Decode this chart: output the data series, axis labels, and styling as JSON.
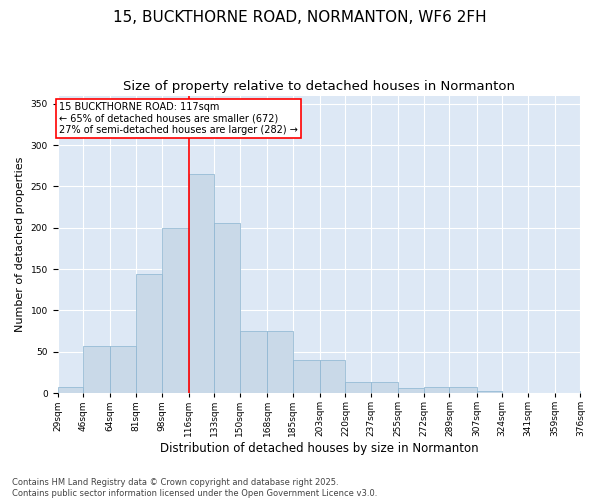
{
  "title_line1": "15, BUCKTHORNE ROAD, NORMANTON, WF6 2FH",
  "title_line2": "Size of property relative to detached houses in Normanton",
  "xlabel": "Distribution of detached houses by size in Normanton",
  "ylabel": "Number of detached properties",
  "annotation_title": "15 BUCKTHORNE ROAD: 117sqm",
  "annotation_line2": "← 65% of detached houses are smaller (672)",
  "annotation_line3": "27% of semi-detached houses are larger (282) →",
  "vline_x": 116,
  "bar_color": "#c9d9e8",
  "bar_edge_color": "#8ab4d0",
  "vline_color": "red",
  "annotation_box_color": "red",
  "background_color": "#dde8f5",
  "plot_bg_color": "#dde8f5",
  "bins": [
    29,
    46,
    64,
    81,
    98,
    116,
    133,
    150,
    168,
    185,
    203,
    220,
    237,
    255,
    272,
    289,
    307,
    324,
    341,
    359,
    376
  ],
  "counts": [
    8,
    57,
    57,
    144,
    200,
    265,
    206,
    75,
    75,
    40,
    40,
    13,
    13,
    6,
    7,
    7,
    3,
    0,
    0,
    0,
    2
  ],
  "ylim": [
    0,
    360
  ],
  "yticks": [
    0,
    50,
    100,
    150,
    200,
    250,
    300,
    350
  ],
  "footer_line1": "Contains HM Land Registry data © Crown copyright and database right 2025.",
  "footer_line2": "Contains public sector information licensed under the Open Government Licence v3.0.",
  "title_fontsize": 11,
  "subtitle_fontsize": 9.5,
  "tick_fontsize": 6.5,
  "xlabel_fontsize": 8.5,
  "ylabel_fontsize": 8,
  "annotation_fontsize": 7,
  "footer_fontsize": 6
}
